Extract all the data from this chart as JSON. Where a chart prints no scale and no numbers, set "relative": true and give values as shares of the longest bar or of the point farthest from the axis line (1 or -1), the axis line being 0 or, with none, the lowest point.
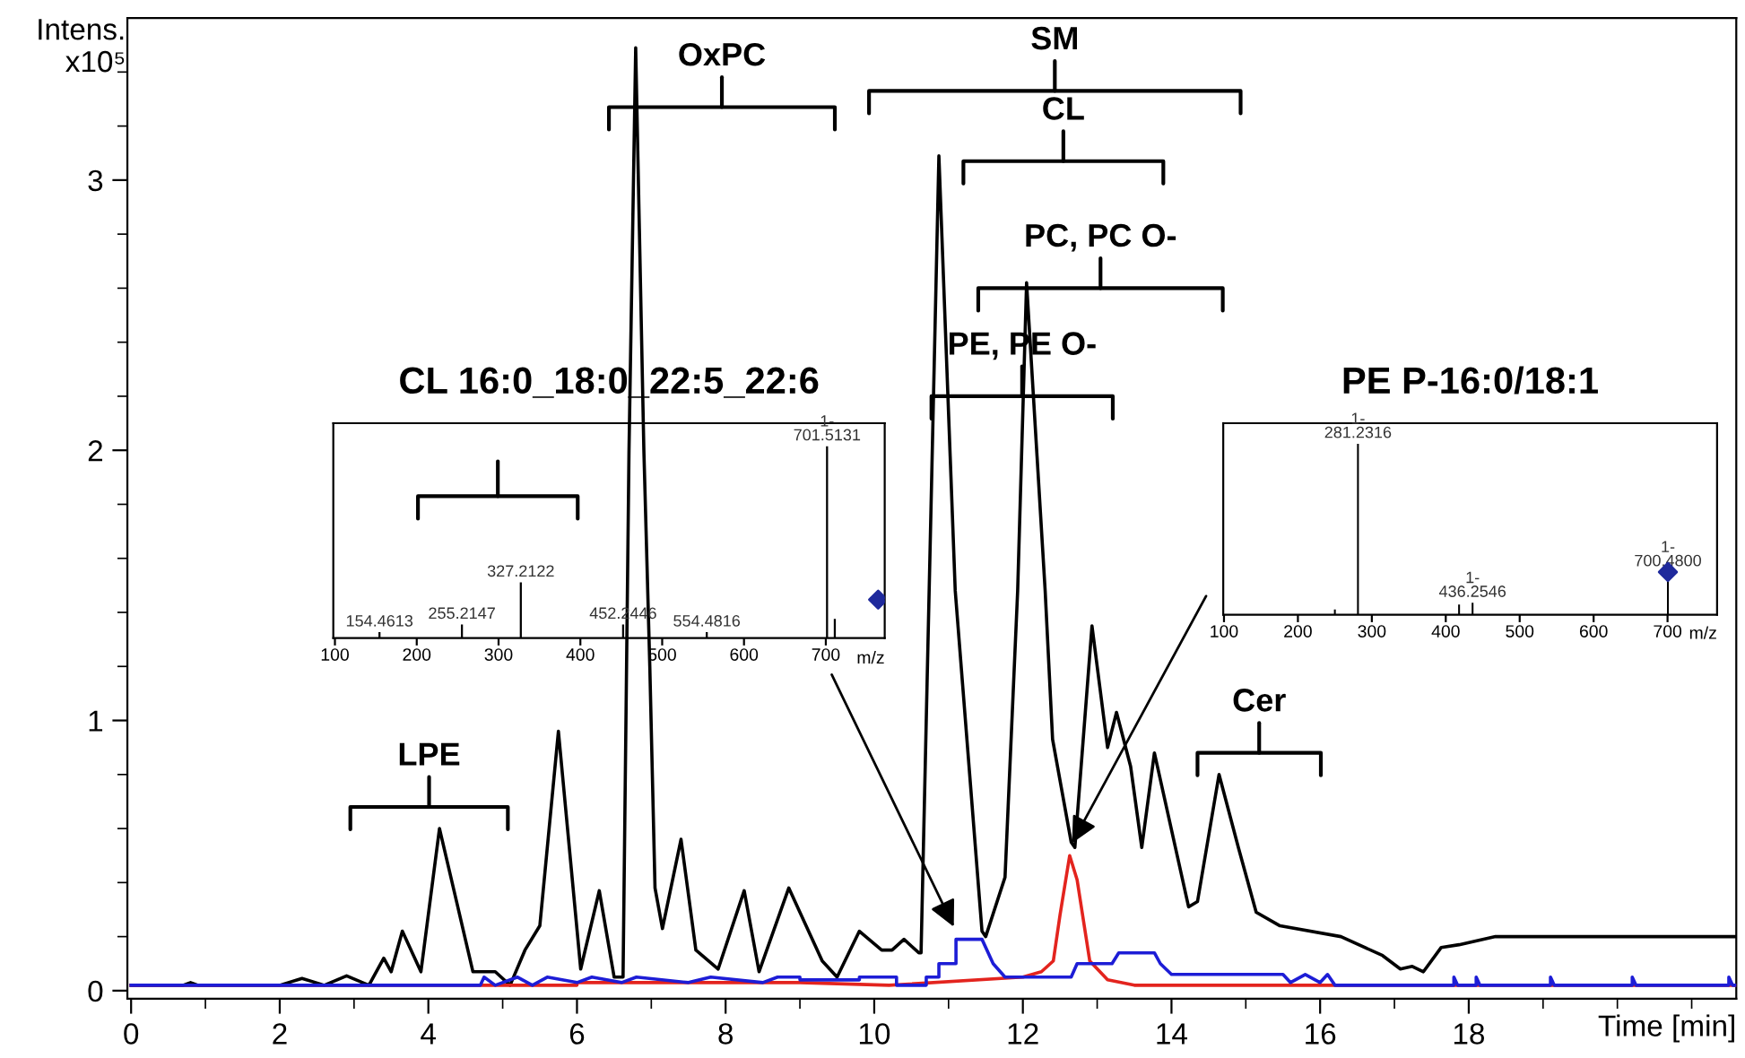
{
  "chart_data": [
    {
      "type": "line",
      "xlabel": "Time [min]",
      "ylabel": "Intens.\nx10⁵",
      "xlim": [
        -0.05,
        21.6
      ],
      "ylim": [
        -0.03,
        3.6
      ],
      "xticks": [
        0,
        {
          "value": 1,
          "label": null
        },
        2,
        {
          "value": 3,
          "label": null
        },
        4,
        {
          "value": 5,
          "label": null
        },
        6,
        {
          "value": 7,
          "label": null
        },
        8,
        {
          "value": 9,
          "label": null
        },
        10,
        {
          "value": 11,
          "label": null
        },
        12,
        {
          "value": 13,
          "label": null
        },
        14,
        {
          "value": 15,
          "label": null
        },
        16,
        {
          "value": 17,
          "label": null
        },
        18,
        {
          "value": 19,
          "label": null
        },
        {
          "value": 20,
          "label": null
        },
        {
          "value": 21,
          "label": null
        }
      ],
      "yticks": [
        0,
        {
          "value": 0.2,
          "label": null
        },
        {
          "value": 0.4,
          "label": null
        },
        {
          "value": 0.6,
          "label": null
        },
        {
          "value": 0.8,
          "label": null
        },
        1,
        {
          "value": 1.2,
          "label": null
        },
        {
          "value": 1.4,
          "label": null
        },
        {
          "value": 1.6,
          "label": null
        },
        {
          "value": 1.8,
          "label": null
        },
        2,
        {
          "value": 2.2,
          "label": null
        },
        {
          "value": 2.4,
          "label": null
        },
        {
          "value": 2.6,
          "label": null
        },
        {
          "value": 2.8,
          "label": null
        },
        3,
        {
          "value": 3.2,
          "label": null
        },
        {
          "value": 3.4,
          "label": null
        }
      ],
      "grid": false,
      "legend": false,
      "marker": "none",
      "line_style": "solid",
      "series": [
        {
          "color": "#000000",
          "x": [
            0,
            0.7,
            0.8,
            0.9,
            2.0,
            2.3,
            2.6,
            2.9,
            3.2,
            3.4,
            3.5,
            3.65,
            3.9,
            4.15,
            4.6,
            4.9,
            5.1,
            5.3,
            5.5,
            5.75,
            6.05,
            6.3,
            6.5,
            6.62,
            6.7,
            6.79,
            6.9,
            6.98,
            7.05,
            7.15,
            7.4,
            7.6,
            7.9,
            8.25,
            8.45,
            8.85,
            9.3,
            9.5,
            9.8,
            10.1,
            10.24,
            10.4,
            10.6,
            10.63,
            10.87,
            11.09,
            11.45,
            11.5,
            11.76,
            11.93,
            12.05,
            12.3,
            12.4,
            12.65,
            12.7,
            12.93,
            13.14,
            13.26,
            13.45,
            13.6,
            13.77,
            14.23,
            14.35,
            14.64,
            14.9,
            15.14,
            15.46,
            16.28,
            16.84,
            17.08,
            17.24,
            17.39,
            17.63,
            17.87,
            18.36,
            19.48,
            21.6
          ],
          "values": [
            0.02,
            0.02,
            0.03,
            0.02,
            0.02,
            0.045,
            0.02,
            0.055,
            0.02,
            0.12,
            0.07,
            0.22,
            0.07,
            0.6,
            0.07,
            0.07,
            0.02,
            0.15,
            0.24,
            0.96,
            0.08,
            0.37,
            0.05,
            0.05,
            2.0,
            3.49,
            2.0,
            1.2,
            0.38,
            0.23,
            0.56,
            0.15,
            0.08,
            0.37,
            0.07,
            0.38,
            0.11,
            0.05,
            0.22,
            0.15,
            0.15,
            0.19,
            0.14,
            0.14,
            3.09,
            1.48,
            0.22,
            0.2,
            0.42,
            1.48,
            2.62,
            1.48,
            0.93,
            0.55,
            0.53,
            1.35,
            0.9,
            1.03,
            0.83,
            0.53,
            0.88,
            0.31,
            0.33,
            0.8,
            0.53,
            0.29,
            0.24,
            0.2,
            0.13,
            0.08,
            0.09,
            0.07,
            0.16,
            0.17,
            0.2,
            0.2,
            0.2
          ]
        },
        {
          "color": "#e3241e",
          "x": [
            0,
            6.0,
            6.0,
            9.0,
            10.2,
            12.0,
            12.25,
            12.41,
            12.5,
            12.63,
            12.73,
            12.9,
            13.14,
            13.5,
            21.6
          ],
          "values": [
            0.02,
            0.02,
            0.03,
            0.03,
            0.02,
            0.05,
            0.07,
            0.11,
            0.28,
            0.5,
            0.41,
            0.11,
            0.04,
            0.02,
            0.02
          ]
        },
        {
          "color": "#1d1dd6",
          "x": [
            0,
            4.7,
            4.75,
            4.9,
            5.2,
            5.4,
            5.6,
            6.0,
            6.2,
            6.6,
            6.8,
            7.5,
            7.8,
            8.5,
            8.7,
            9.0,
            9.0,
            9.8,
            9.8,
            10.3,
            10.3,
            10.7,
            10.7,
            10.87,
            10.87,
            11.1,
            11.1,
            11.45,
            11.6,
            11.76,
            12.65,
            12.73,
            13.2,
            13.29,
            13.77,
            13.85,
            14.0,
            15.5,
            15.6,
            15.8,
            16.0,
            16.1,
            16.2,
            17.8,
            17.8,
            17.85,
            18.1,
            18.1,
            18.15,
            19.1,
            19.1,
            19.15,
            20.2,
            20.2,
            20.25,
            21.5,
            21.5,
            21.55,
            21.6
          ],
          "values": [
            0.02,
            0.02,
            0.05,
            0.02,
            0.05,
            0.02,
            0.05,
            0.03,
            0.05,
            0.03,
            0.05,
            0.03,
            0.05,
            0.03,
            0.05,
            0.05,
            0.04,
            0.04,
            0.05,
            0.05,
            0.02,
            0.02,
            0.05,
            0.05,
            0.1,
            0.1,
            0.19,
            0.19,
            0.1,
            0.05,
            0.05,
            0.1,
            0.1,
            0.14,
            0.14,
            0.1,
            0.06,
            0.06,
            0.03,
            0.06,
            0.03,
            0.06,
            0.02,
            0.02,
            0.05,
            0.02,
            0.02,
            0.05,
            0.02,
            0.02,
            0.05,
            0.02,
            0.02,
            0.05,
            0.02,
            0.02,
            0.05,
            0.02,
            0.02
          ]
        }
      ],
      "annotations": [
        "LPE",
        "OxPC",
        "SM",
        "CL",
        "PC, PC O-",
        "PE, PE O-",
        "Cer"
      ]
    },
    {
      "type": "bar",
      "title": "CL 16:0_18:0_22:5_22:6",
      "xlabel": "m/z",
      "relative": true,
      "xlim": [
        98,
        772
      ],
      "xticks": [
        100,
        200,
        300,
        400,
        500,
        600,
        700
      ],
      "series": [
        {
          "color": "#000000",
          "x": [
            154.4613,
            255.2147,
            327.2122,
            452.2446,
            554.4816,
            701.5131,
            711
          ],
          "values": [
            0.03,
            0.07,
            0.29,
            0.07,
            0.03,
            1,
            0.1
          ]
        },
        {
          "type": "scatter",
          "marker": "diamond",
          "color": "#1f2a9c",
          "x": [
            764
          ],
          "values": [
            0.2
          ]
        }
      ],
      "annotations": [
        {
          "text": "154.4613",
          "x": 154.4613,
          "y": 0.03
        },
        {
          "text": "255.2147",
          "x": 255.2147,
          "y": 0.07
        },
        {
          "text": "327.2122",
          "x": 327.2122,
          "y": 0.29
        },
        {
          "text": "452.2446",
          "x": 452.2446,
          "y": 0.07
        },
        {
          "text": "554.4816",
          "x": 554.4816,
          "y": 0.03
        },
        {
          "text": "1-\n701.5131",
          "x": 701.5131,
          "y": 1
        }
      ]
    },
    {
      "type": "bar",
      "title": "PE P-16:0/18:1",
      "xlabel": "m/z",
      "relative": true,
      "xlim": [
        99,
        767
      ],
      "xticks": [
        100,
        200,
        300,
        400,
        500,
        600,
        700
      ],
      "series": [
        {
          "color": "#000000",
          "x": [
            250,
            281.2316,
            418,
            436.2546,
            700.48
          ],
          "values": [
            0.03,
            1,
            0.06,
            0.07,
            0.22
          ]
        },
        {
          "type": "scatter",
          "marker": "diamond",
          "color": "#1f2a9c",
          "x": [
            700.48
          ],
          "values": [
            0.25
          ]
        }
      ],
      "annotations": [
        {
          "text": "1-\n281.2316",
          "x": 281.2316,
          "y": 1
        },
        {
          "text": "1-\n436.2546",
          "x": 436.2546,
          "y": 0.07
        },
        {
          "text": "1-\n700.4800",
          "x": 700.48,
          "y": 0.25
        }
      ]
    }
  ]
}
